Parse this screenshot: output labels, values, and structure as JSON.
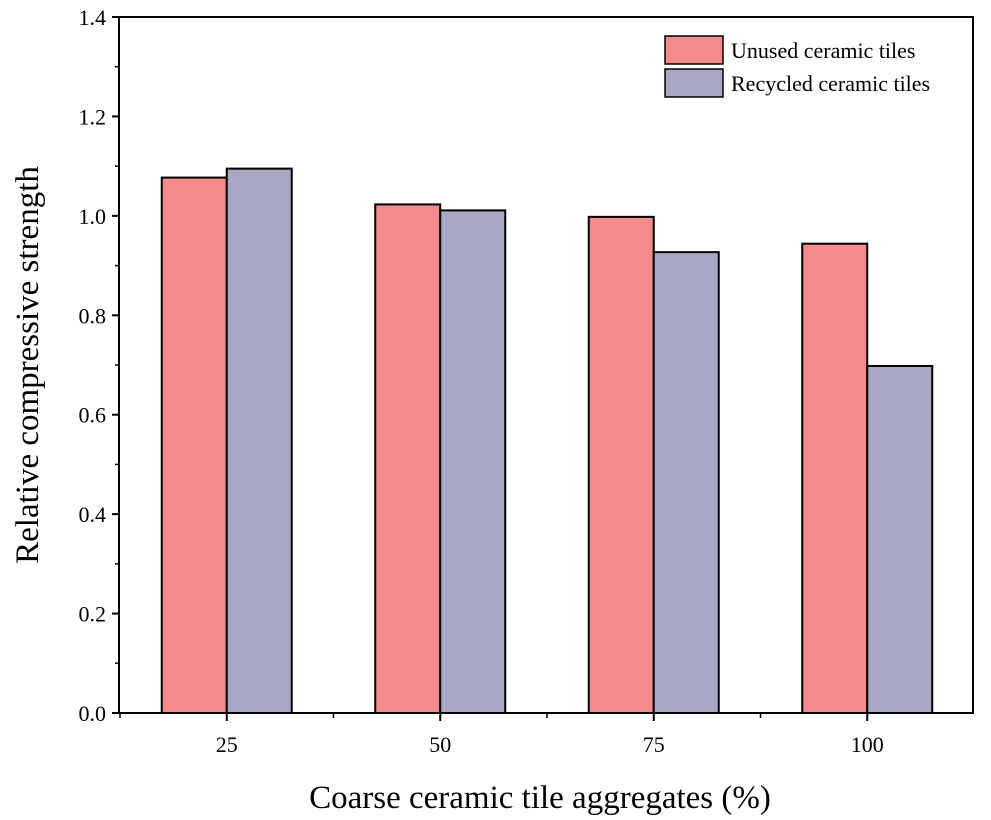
{
  "chart_data": {
    "type": "bar",
    "title": "",
    "xlabel": "Coarse ceramic tile aggregates (%)",
    "ylabel": "Relative compressive strength",
    "categories": [
      "25",
      "50",
      "75",
      "100"
    ],
    "series": [
      {
        "name": "Unused ceramic tiles",
        "color": "#f48b8b",
        "values": [
          1.077,
          1.023,
          0.998,
          0.944
        ]
      },
      {
        "name": "Recycled ceramic tiles",
        "color": "#a8a8c4",
        "values": [
          1.095,
          1.011,
          0.927,
          0.698
        ]
      }
    ],
    "ylim": [
      0,
      1.4
    ],
    "yticks": [
      "0.0",
      "0.2",
      "0.4",
      "0.6",
      "0.8",
      "1.0",
      "1.2",
      "1.4"
    ],
    "legend": "top-right",
    "grid": false
  }
}
